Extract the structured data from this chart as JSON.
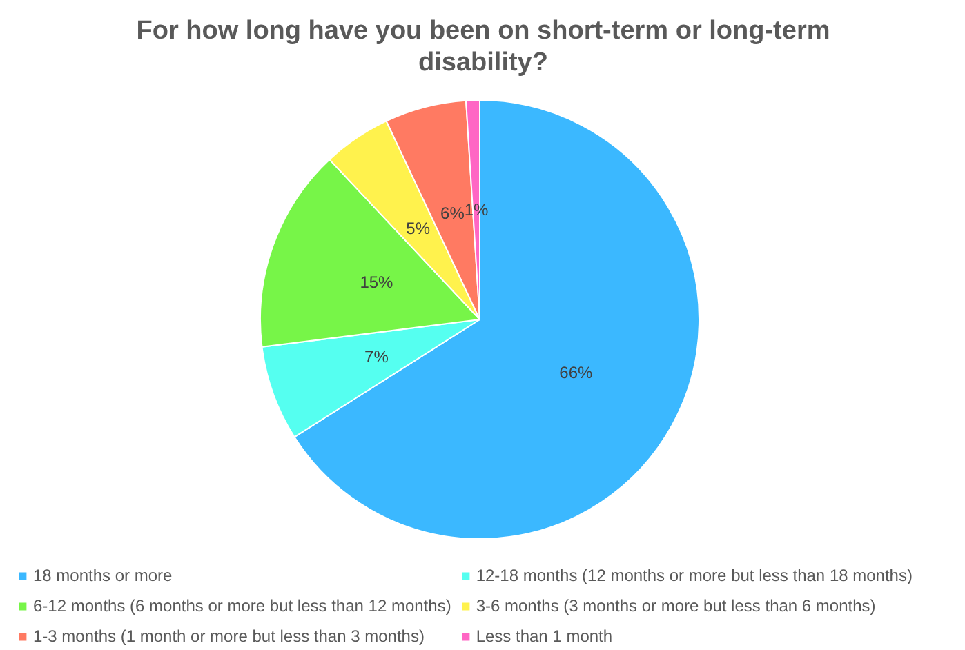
{
  "chart_data": {
    "type": "pie",
    "title": "For how long have you been on short-term or long-term disability?",
    "categories": [
      "18 months or more",
      "12-18 months (12 months or more but less than 18 months)",
      "6-12 months (6 months or more but less than 12 months)",
      "3-6 months (3 months or more but less than 6 months)",
      "1-3 months (1 month or more but less than 3 months)",
      "Less than 1 month"
    ],
    "values": [
      66,
      7,
      15,
      5,
      6,
      1
    ],
    "colors": [
      "#3bb8ff",
      "#55fff0",
      "#77f548",
      "#fff24d",
      "#ff7a62",
      "#ff66c4"
    ],
    "value_labels": [
      "66%",
      "7%",
      "15%",
      "5%",
      "6%",
      "1%"
    ],
    "legend": "bottom"
  }
}
